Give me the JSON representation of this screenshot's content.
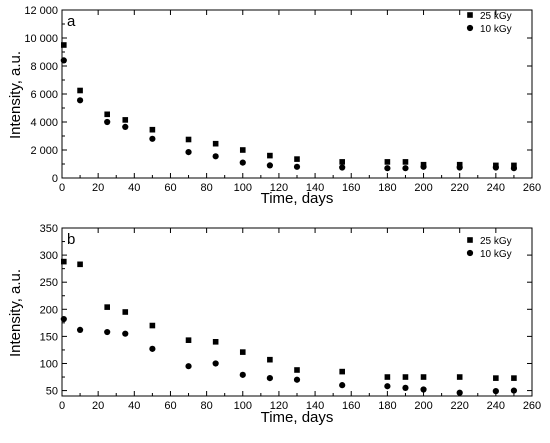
{
  "chart_data": [
    {
      "type": "scatter",
      "panel_label": "a",
      "xlabel": "Time, days",
      "ylabel": "Intensity, a.u.",
      "xlim": [
        0,
        260
      ],
      "ylim": [
        0,
        12000
      ],
      "xticks": [
        0,
        20,
        40,
        60,
        80,
        100,
        120,
        140,
        160,
        180,
        200,
        220,
        240,
        260
      ],
      "yticks": [
        0,
        2000,
        4000,
        6000,
        8000,
        10000,
        12000
      ],
      "ytick_labels": [
        "0",
        "2 000",
        "4 000",
        "6 000",
        "8 000",
        "10 000",
        "12 000"
      ],
      "legend_position": "top-right",
      "series": [
        {
          "name": "25 kGy",
          "marker": "square",
          "color": "#000000",
          "points": [
            [
              1,
              9500
            ],
            [
              10,
              6250
            ],
            [
              25,
              4550
            ],
            [
              35,
              4150
            ],
            [
              50,
              3450
            ],
            [
              70,
              2750
            ],
            [
              85,
              2450
            ],
            [
              100,
              2000
            ],
            [
              115,
              1600
            ],
            [
              130,
              1350
            ],
            [
              155,
              1150
            ],
            [
              180,
              1150
            ],
            [
              190,
              1150
            ],
            [
              200,
              950
            ],
            [
              220,
              950
            ],
            [
              240,
              900
            ],
            [
              250,
              900
            ]
          ]
        },
        {
          "name": "10 kGy",
          "marker": "circle",
          "color": "#000000",
          "points": [
            [
              1,
              8400
            ],
            [
              10,
              5550
            ],
            [
              25,
              4000
            ],
            [
              35,
              3650
            ],
            [
              50,
              2800
            ],
            [
              70,
              1850
            ],
            [
              85,
              1550
            ],
            [
              100,
              1100
            ],
            [
              115,
              900
            ],
            [
              130,
              800
            ],
            [
              155,
              750
            ],
            [
              180,
              700
            ],
            [
              190,
              700
            ],
            [
              200,
              800
            ],
            [
              220,
              750
            ],
            [
              240,
              750
            ],
            [
              250,
              700
            ]
          ]
        }
      ]
    },
    {
      "type": "scatter",
      "panel_label": "b",
      "xlabel": "Time, days",
      "ylabel": "Intensity, a.u.",
      "xlim": [
        0,
        260
      ],
      "ylim": [
        40,
        350
      ],
      "xticks": [
        0,
        20,
        40,
        60,
        80,
        100,
        120,
        140,
        160,
        180,
        200,
        220,
        240,
        260
      ],
      "yticks": [
        50,
        100,
        150,
        200,
        250,
        300,
        350
      ],
      "ytick_labels": [
        "50",
        "100",
        "150",
        "200",
        "250",
        "300",
        "350"
      ],
      "legend_position": "top-right",
      "series": [
        {
          "name": "25 kGy",
          "marker": "square",
          "color": "#000000",
          "points": [
            [
              1,
              288
            ],
            [
              10,
              283
            ],
            [
              25,
              204
            ],
            [
              35,
              195
            ],
            [
              50,
              170
            ],
            [
              70,
              143
            ],
            [
              85,
              140
            ],
            [
              100,
              121
            ],
            [
              115,
              107
            ],
            [
              130,
              88
            ],
            [
              155,
              85
            ],
            [
              180,
              75
            ],
            [
              190,
              75
            ],
            [
              200,
              75
            ],
            [
              220,
              75
            ],
            [
              240,
              73
            ],
            [
              250,
              73
            ]
          ]
        },
        {
          "name": "10 kGy",
          "marker": "circle",
          "color": "#000000",
          "points": [
            [
              1,
              182
            ],
            [
              10,
              162
            ],
            [
              25,
              158
            ],
            [
              35,
              155
            ],
            [
              50,
              127
            ],
            [
              70,
              95
            ],
            [
              85,
              100
            ],
            [
              100,
              79
            ],
            [
              115,
              73
            ],
            [
              130,
              70
            ],
            [
              155,
              60
            ],
            [
              180,
              58
            ],
            [
              190,
              55
            ],
            [
              200,
              52
            ],
            [
              220,
              46
            ],
            [
              240,
              49
            ],
            [
              250,
              50
            ]
          ]
        }
      ]
    }
  ]
}
